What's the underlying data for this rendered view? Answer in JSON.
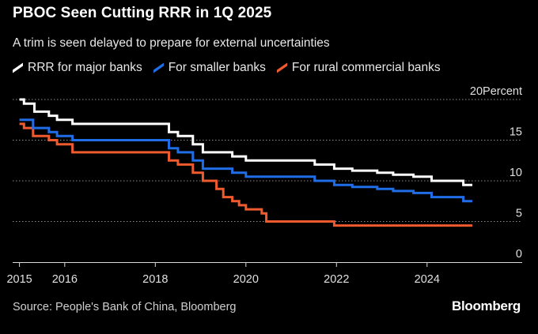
{
  "header": {
    "title": "PBOC Seen Cutting RRR in 1Q 2025",
    "subtitle": "A trim is seen delayed to prepare for external uncertainties"
  },
  "footer": {
    "source": "Source: People's Bank of China, Bloomberg",
    "brand": "Bloomberg"
  },
  "chart_data": {
    "type": "line",
    "title": "PBOC Seen Cutting RRR in 1Q 2025",
    "subtitle": "A trim is seen delayed to prepare for external uncertainties",
    "xlabel": "",
    "ylabel": "Percent",
    "xlim": [
      2014.85,
      2026.1
    ],
    "ylim": [
      0,
      20
    ],
    "y_ticks": [
      {
        "value": 0,
        "label": "0"
      },
      {
        "value": 5,
        "label": "5"
      },
      {
        "value": 10,
        "label": "10"
      },
      {
        "value": 15,
        "label": "15"
      },
      {
        "value": 20,
        "label": "20Percent"
      }
    ],
    "x_ticks": [
      {
        "value": 2015,
        "label": "2015"
      },
      {
        "value": 2016,
        "label": "2016"
      },
      {
        "value": 2018,
        "label": "2018"
      },
      {
        "value": 2020,
        "label": "2020"
      },
      {
        "value": 2022,
        "label": "2022"
      },
      {
        "value": 2024,
        "label": "2024"
      }
    ],
    "grid": "horizontal dotted",
    "legend_position": "top-left",
    "series": [
      {
        "name": "RRR for major banks",
        "color": "#ffffff",
        "step": true,
        "points": [
          [
            2015.0,
            20.0
          ],
          [
            2015.1,
            19.5
          ],
          [
            2015.33,
            18.5
          ],
          [
            2015.65,
            18.0
          ],
          [
            2015.83,
            17.5
          ],
          [
            2016.17,
            17.0
          ],
          [
            2018.3,
            16.0
          ],
          [
            2018.5,
            15.5
          ],
          [
            2018.83,
            14.5
          ],
          [
            2019.05,
            13.5
          ],
          [
            2019.7,
            13.0
          ],
          [
            2020.0,
            12.5
          ],
          [
            2021.52,
            12.0
          ],
          [
            2021.95,
            11.5
          ],
          [
            2022.35,
            11.25
          ],
          [
            2022.9,
            11.0
          ],
          [
            2023.25,
            10.75
          ],
          [
            2023.7,
            10.5
          ],
          [
            2024.1,
            10.0
          ],
          [
            2024.8,
            9.5
          ],
          [
            2025.0,
            9.5
          ]
        ]
      },
      {
        "name": "For smaller banks",
        "color": "#1f6ee8",
        "step": true,
        "points": [
          [
            2015.0,
            17.5
          ],
          [
            2015.3,
            16.5
          ],
          [
            2015.65,
            16.0
          ],
          [
            2015.83,
            15.5
          ],
          [
            2016.17,
            15.0
          ],
          [
            2018.3,
            14.0
          ],
          [
            2018.5,
            13.5
          ],
          [
            2018.83,
            12.5
          ],
          [
            2019.05,
            11.5
          ],
          [
            2019.7,
            11.0
          ],
          [
            2020.0,
            10.5
          ],
          [
            2021.52,
            10.0
          ],
          [
            2021.95,
            9.5
          ],
          [
            2022.35,
            9.25
          ],
          [
            2022.9,
            9.0
          ],
          [
            2023.25,
            8.75
          ],
          [
            2023.7,
            8.5
          ],
          [
            2024.1,
            8.0
          ],
          [
            2024.8,
            7.5
          ],
          [
            2025.0,
            7.5
          ]
        ]
      },
      {
        "name": "For rural commercial banks",
        "color": "#ef5a2e",
        "step": true,
        "points": [
          [
            2015.0,
            17.0
          ],
          [
            2015.1,
            16.5
          ],
          [
            2015.3,
            15.5
          ],
          [
            2015.65,
            15.0
          ],
          [
            2015.83,
            14.5
          ],
          [
            2016.17,
            13.5
          ],
          [
            2018.3,
            12.5
          ],
          [
            2018.5,
            12.0
          ],
          [
            2018.83,
            11.0
          ],
          [
            2019.05,
            10.0
          ],
          [
            2019.35,
            9.0
          ],
          [
            2019.5,
            8.0
          ],
          [
            2019.7,
            7.5
          ],
          [
            2019.85,
            7.0
          ],
          [
            2020.0,
            6.5
          ],
          [
            2020.35,
            6.0
          ],
          [
            2020.45,
            5.0
          ],
          [
            2021.95,
            4.5
          ],
          [
            2025.0,
            4.5
          ]
        ]
      }
    ]
  }
}
